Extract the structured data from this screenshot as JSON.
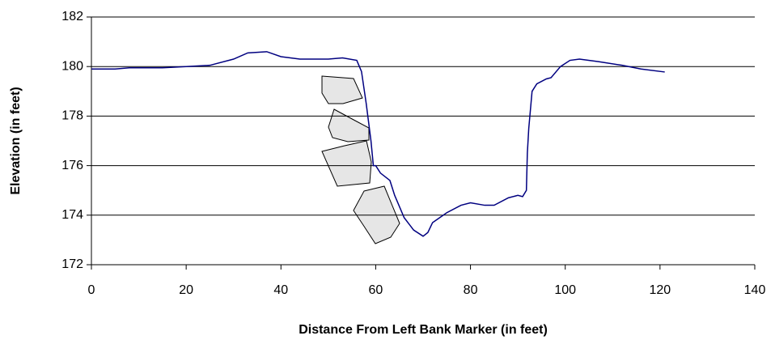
{
  "chart_data": {
    "type": "line",
    "x_label": "Distance From Left Bank Marker (in feet)",
    "y_label": "Elevation (in feet)",
    "x": [
      0,
      5,
      8,
      15,
      20,
      25,
      30,
      33,
      37,
      40,
      44,
      50,
      53,
      56,
      57,
      58,
      59,
      59.5,
      60,
      61,
      63,
      64,
      66,
      68,
      70,
      71,
      72,
      75,
      78,
      80,
      83,
      85,
      88,
      90,
      91,
      91.8,
      92,
      92.3,
      93,
      94,
      96,
      97,
      99,
      101,
      103,
      107,
      112,
      116,
      121
    ],
    "series": [
      {
        "color": "#000080",
        "values": [
          179.9,
          179.9,
          179.95,
          179.95,
          180.0,
          180.05,
          180.3,
          180.55,
          180.6,
          180.4,
          180.3,
          180.3,
          180.35,
          180.25,
          179.8,
          178.5,
          177.0,
          176.0,
          176.0,
          175.7,
          175.4,
          174.8,
          173.9,
          173.4,
          173.15,
          173.3,
          173.7,
          174.1,
          174.4,
          174.5,
          174.4,
          174.4,
          174.7,
          174.8,
          174.75,
          175.0,
          176.5,
          177.5,
          179.0,
          179.3,
          179.5,
          179.55,
          180.0,
          180.25,
          180.3,
          180.2,
          180.05,
          179.9,
          179.78
        ]
      }
    ],
    "xlim": [
      0,
      140
    ],
    "xticks": [
      0,
      20,
      40,
      60,
      80,
      100,
      120,
      140
    ],
    "ylim": [
      172,
      182
    ],
    "yticks": [
      172,
      174,
      176,
      178,
      180,
      182
    ],
    "grid": true
  }
}
